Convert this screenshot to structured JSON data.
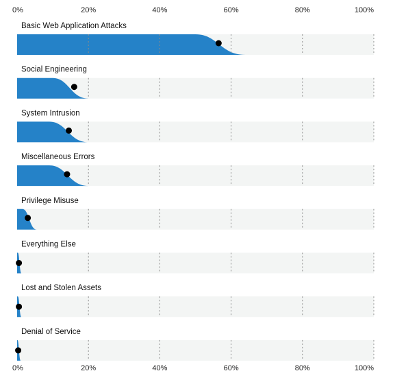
{
  "chart_data": {
    "type": "area",
    "xlim": [
      0,
      100
    ],
    "x_ticks": [
      "0%",
      "20%",
      "40%",
      "60%",
      "80%",
      "100%"
    ],
    "grid": true,
    "colors": {
      "fill": "#2582c8",
      "track": "#f3f5f4",
      "marker": "#000000",
      "grid": "#8a8a8a"
    },
    "rows": [
      {
        "label": "Basic Web Application Attacks",
        "marker": 56.5,
        "spread": [
          50,
          64
        ]
      },
      {
        "label": "Social Engineering",
        "marker": 16,
        "spread": [
          10,
          20
        ]
      },
      {
        "label": "System Intrusion",
        "marker": 14.5,
        "spread": [
          9,
          20
        ]
      },
      {
        "label": "Miscellaneous Errors",
        "marker": 14,
        "spread": [
          9,
          20
        ]
      },
      {
        "label": "Privilege Misuse",
        "marker": 3,
        "spread": [
          1.5,
          5.5
        ]
      },
      {
        "label": "Everything Else",
        "marker": 0.5,
        "spread": [
          0.2,
          1.2
        ]
      },
      {
        "label": "Lost and Stolen Assets",
        "marker": 0.5,
        "spread": [
          0.2,
          1.2
        ]
      },
      {
        "label": "Denial of Service",
        "marker": 0.3,
        "spread": [
          0.1,
          1
        ]
      }
    ]
  }
}
